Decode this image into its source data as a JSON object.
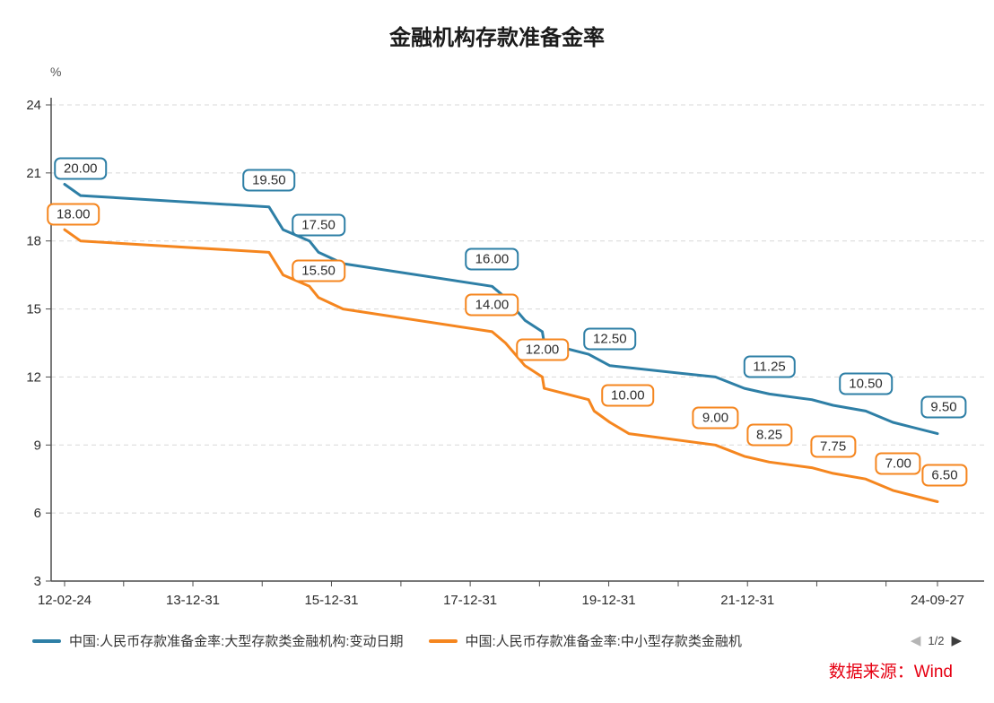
{
  "pagination": {
    "label": "1/2",
    "prev_icon": "◀",
    "next_icon": "▶"
  },
  "source": {
    "text": "数据来源：Wind",
    "color": "#e60012"
  },
  "chart_data": {
    "type": "line",
    "title": "金融机构存款准备金率",
    "unit_label": "%",
    "ylim": [
      3,
      24
    ],
    "y_ticks": [
      24,
      21,
      18,
      15,
      12,
      9,
      6,
      3
    ],
    "grid": "dashed-horizontal",
    "legend_position": "bottom",
    "x_range": [
      "2012-02-24",
      "2024-09-27"
    ],
    "x_ticks": [
      {
        "date": "2012-02-24",
        "label": "12-02-24"
      },
      {
        "date": "2013-12-31",
        "label": "13-12-31"
      },
      {
        "date": "2015-12-31",
        "label": "15-12-31"
      },
      {
        "date": "2017-12-31",
        "label": "17-12-31"
      },
      {
        "date": "2019-12-31",
        "label": "19-12-31"
      },
      {
        "date": "2021-12-31",
        "label": "21-12-31"
      },
      {
        "date": "2024-09-27",
        "label": "24-09-27"
      }
    ],
    "x_minor_ticks": [
      "2012-12-31",
      "2014-12-31",
      "2016-12-31",
      "2018-12-31",
      "2020-12-31",
      "2022-12-31",
      "2023-12-31"
    ],
    "series": [
      {
        "id": "large",
        "name": "中国:人民币存款准备金率:大型存款类金融机构:变动日期",
        "color": "#2e7fa6",
        "points": [
          [
            "2012-02-24",
            20.5
          ],
          [
            "2012-05-18",
            20.0
          ],
          [
            "2015-02-05",
            19.5
          ],
          [
            "2015-04-20",
            18.5
          ],
          [
            "2015-09-06",
            18.0
          ],
          [
            "2015-10-24",
            17.5
          ],
          [
            "2016-03-01",
            17.0
          ],
          [
            "2018-04-25",
            16.0
          ],
          [
            "2018-07-05",
            15.5
          ],
          [
            "2018-10-15",
            14.5
          ],
          [
            "2019-01-15",
            14.0
          ],
          [
            "2019-01-25",
            13.5
          ],
          [
            "2019-09-16",
            13.0
          ],
          [
            "2020-01-06",
            12.5
          ],
          [
            "2021-07-15",
            12.0
          ],
          [
            "2021-12-15",
            11.5
          ],
          [
            "2022-04-25",
            11.25
          ],
          [
            "2022-12-05",
            11.0
          ],
          [
            "2023-03-27",
            10.75
          ],
          [
            "2023-09-15",
            10.5
          ],
          [
            "2024-02-05",
            10.0
          ],
          [
            "2024-09-27",
            9.5
          ]
        ]
      },
      {
        "id": "small",
        "name": "中国:人民币存款准备金率:中小型存款类金融机",
        "color": "#f5861f",
        "points": [
          [
            "2012-02-24",
            18.5
          ],
          [
            "2012-05-18",
            18.0
          ],
          [
            "2015-02-05",
            17.5
          ],
          [
            "2015-04-20",
            16.5
          ],
          [
            "2015-09-06",
            16.0
          ],
          [
            "2015-10-24",
            15.5
          ],
          [
            "2016-03-01",
            15.0
          ],
          [
            "2018-04-25",
            14.0
          ],
          [
            "2018-07-05",
            13.5
          ],
          [
            "2018-10-15",
            12.5
          ],
          [
            "2019-01-15",
            12.0
          ],
          [
            "2019-01-25",
            11.5
          ],
          [
            "2019-09-16",
            11.0
          ],
          [
            "2019-10-15",
            10.5
          ],
          [
            "2020-01-06",
            10.0
          ],
          [
            "2020-04-15",
            9.5
          ],
          [
            "2021-07-15",
            9.0
          ],
          [
            "2021-12-15",
            8.5
          ],
          [
            "2022-04-25",
            8.25
          ],
          [
            "2022-12-05",
            8.0
          ],
          [
            "2023-03-27",
            7.75
          ],
          [
            "2023-09-15",
            7.5
          ],
          [
            "2024-02-05",
            7.0
          ],
          [
            "2024-09-27",
            6.5
          ]
        ]
      }
    ],
    "annotations": [
      {
        "series": "large",
        "date": "2012-05-18",
        "value": 20,
        "label": "20.00",
        "dx": 0
      },
      {
        "series": "large",
        "date": "2015-02-05",
        "value": 19.5,
        "label": "19.50",
        "dx": 0
      },
      {
        "series": "large",
        "date": "2015-10-24",
        "value": 17.5,
        "label": "17.50",
        "dx": 0
      },
      {
        "series": "large",
        "date": "2018-04-25",
        "value": 16,
        "label": "16.00",
        "dx": 0
      },
      {
        "series": "large",
        "date": "2020-01-06",
        "value": 12.5,
        "label": "12.50",
        "dx": 0
      },
      {
        "series": "large",
        "date": "2022-04-25",
        "value": 11.25,
        "label": "11.25",
        "dx": 0
      },
      {
        "series": "large",
        "date": "2023-09-15",
        "value": 10.5,
        "label": "10.50",
        "dx": 0
      },
      {
        "series": "large",
        "date": "2024-09-27",
        "value": 9.5,
        "label": "9.50",
        "dx": 7
      },
      {
        "series": "small",
        "date": "2012-05-18",
        "value": 18,
        "label": "18.00",
        "dx": -8
      },
      {
        "series": "small",
        "date": "2015-10-24",
        "value": 15.5,
        "label": "15.50",
        "dx": 0
      },
      {
        "series": "small",
        "date": "2018-04-25",
        "value": 14,
        "label": "14.00",
        "dx": 0
      },
      {
        "series": "small",
        "date": "2019-01-15",
        "value": 12,
        "label": "12.00",
        "dx": 0
      },
      {
        "series": "small",
        "date": "2020-01-06",
        "value": 10,
        "label": "10.00",
        "dx": 20
      },
      {
        "series": "small",
        "date": "2021-07-15",
        "value": 9,
        "label": "9.00",
        "dx": 0
      },
      {
        "series": "small",
        "date": "2022-04-25",
        "value": 8.25,
        "label": "8.25",
        "dx": 0
      },
      {
        "series": "small",
        "date": "2023-03-27",
        "value": 7.75,
        "label": "7.75",
        "dx": 0
      },
      {
        "series": "small",
        "date": "2024-02-05",
        "value": 7,
        "label": "7.00",
        "dx": 6
      },
      {
        "series": "small",
        "date": "2024-09-27",
        "value": 6.5,
        "label": "6.50",
        "dx": 8
      }
    ]
  }
}
